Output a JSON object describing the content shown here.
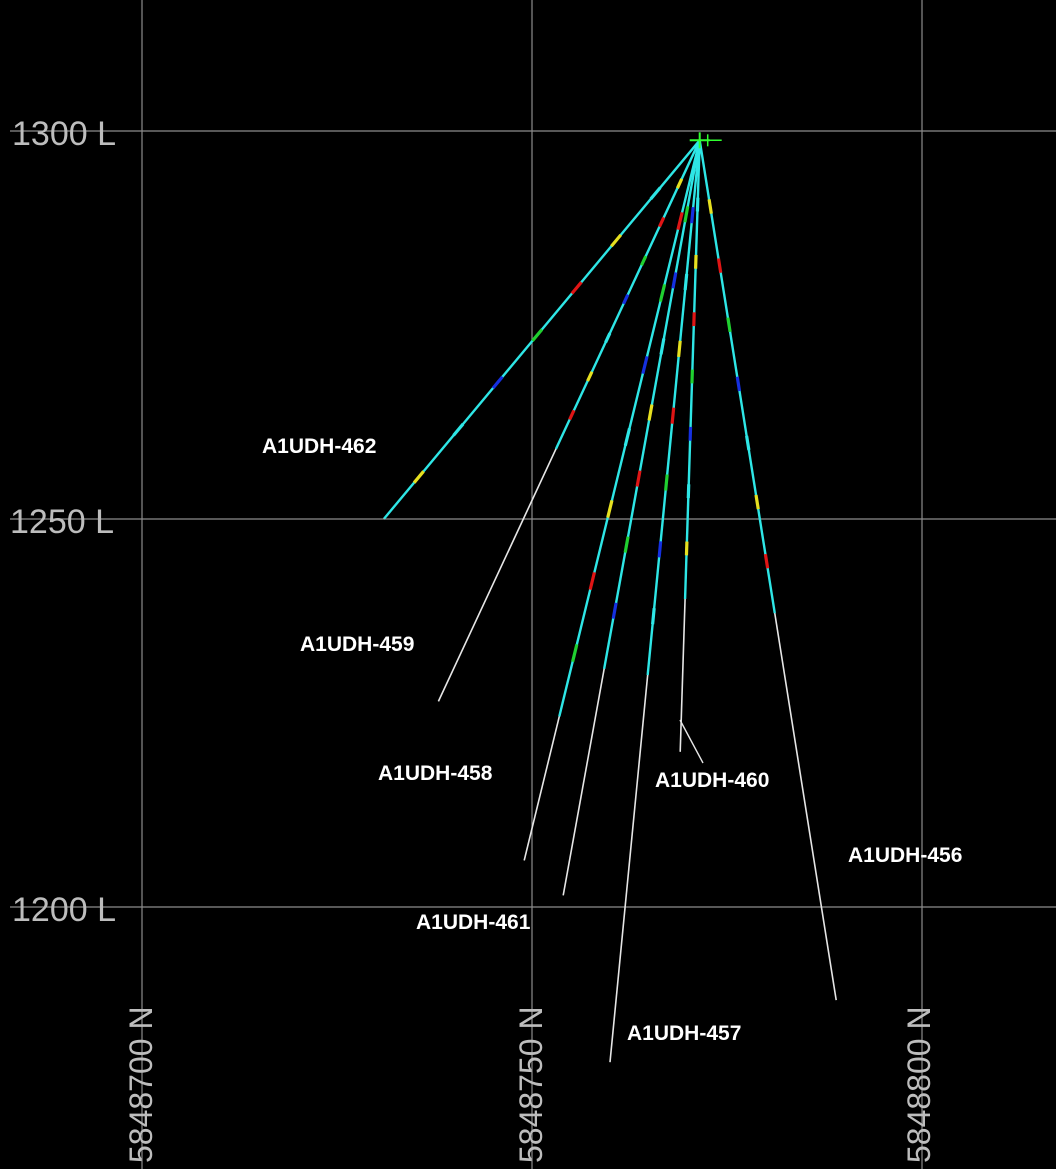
{
  "section": {
    "levels": [
      {
        "label": "1300 L",
        "elevation": 1300
      },
      {
        "label": "1250 L",
        "elevation": 1250
      },
      {
        "label": "1200 L",
        "elevation": 1200
      }
    ],
    "northings": [
      {
        "label": "5848700 N",
        "northing": 5848700
      },
      {
        "label": "5848750 N",
        "northing": 5848750
      },
      {
        "label": "5848800 N",
        "northing": 5848800
      }
    ],
    "collar": {
      "northing": 5848771.5,
      "elevation": 1298.8
    },
    "holes": [
      {
        "id": "A1UDH-462",
        "end": {
          "northing": 5848731,
          "elevation": 1250
        }
      },
      {
        "id": "A1UDH-459",
        "end": {
          "northing": 5848738,
          "elevation": 1226.5
        }
      },
      {
        "id": "A1UDH-458",
        "end": {
          "northing": 5848749,
          "elevation": 1206
        }
      },
      {
        "id": "A1UDH-461",
        "end": {
          "northing": 5848754,
          "elevation": 1201.5
        }
      },
      {
        "id": "A1UDH-457",
        "end": {
          "northing": 5848760,
          "elevation": 1180
        }
      },
      {
        "id": "A1UDH-460",
        "end": {
          "northing": 5848769,
          "elevation": 1220
        }
      },
      {
        "id": "A1UDH-456",
        "end": {
          "northing": 5848789,
          "elevation": 1188
        }
      }
    ],
    "colors": {
      "background": "#000000",
      "grid": "#8c8c8c",
      "trace": "#e6e6e6",
      "trace_assayed": "#2ee6e6",
      "assay_blue": "#1530e0",
      "assay_red": "#e01515",
      "assay_yellow": "#e6e020",
      "assay_green": "#20d030",
      "collar": "#30ff30",
      "label": "#ffffff"
    }
  }
}
